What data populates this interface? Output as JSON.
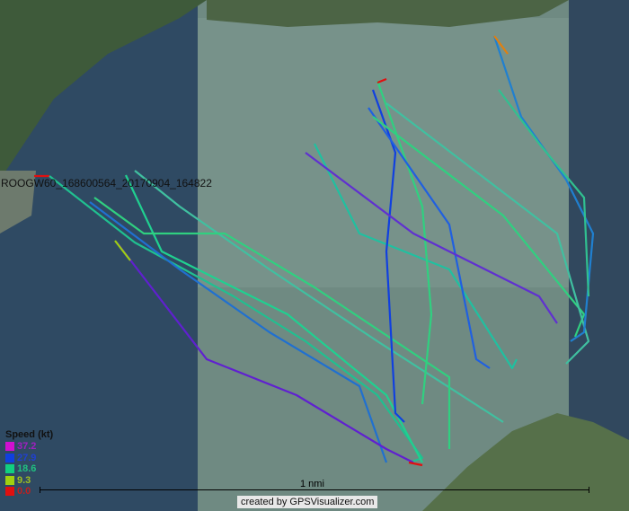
{
  "map": {
    "track_name": "ROOGW60_168600564_20170904_164822",
    "legend": {
      "title": "Speed (kt)",
      "items": [
        {
          "value": "37.2",
          "color": "#d010d0"
        },
        {
          "value": "27.9",
          "color": "#1040e0"
        },
        {
          "value": "18.6",
          "color": "#10d080"
        },
        {
          "value": "9.3",
          "color": "#a0d010"
        },
        {
          "value": "0.0",
          "color": "#e01010"
        }
      ]
    },
    "scale_label": "1 nmi",
    "credit": "created by GPSVisualizer.com"
  }
}
